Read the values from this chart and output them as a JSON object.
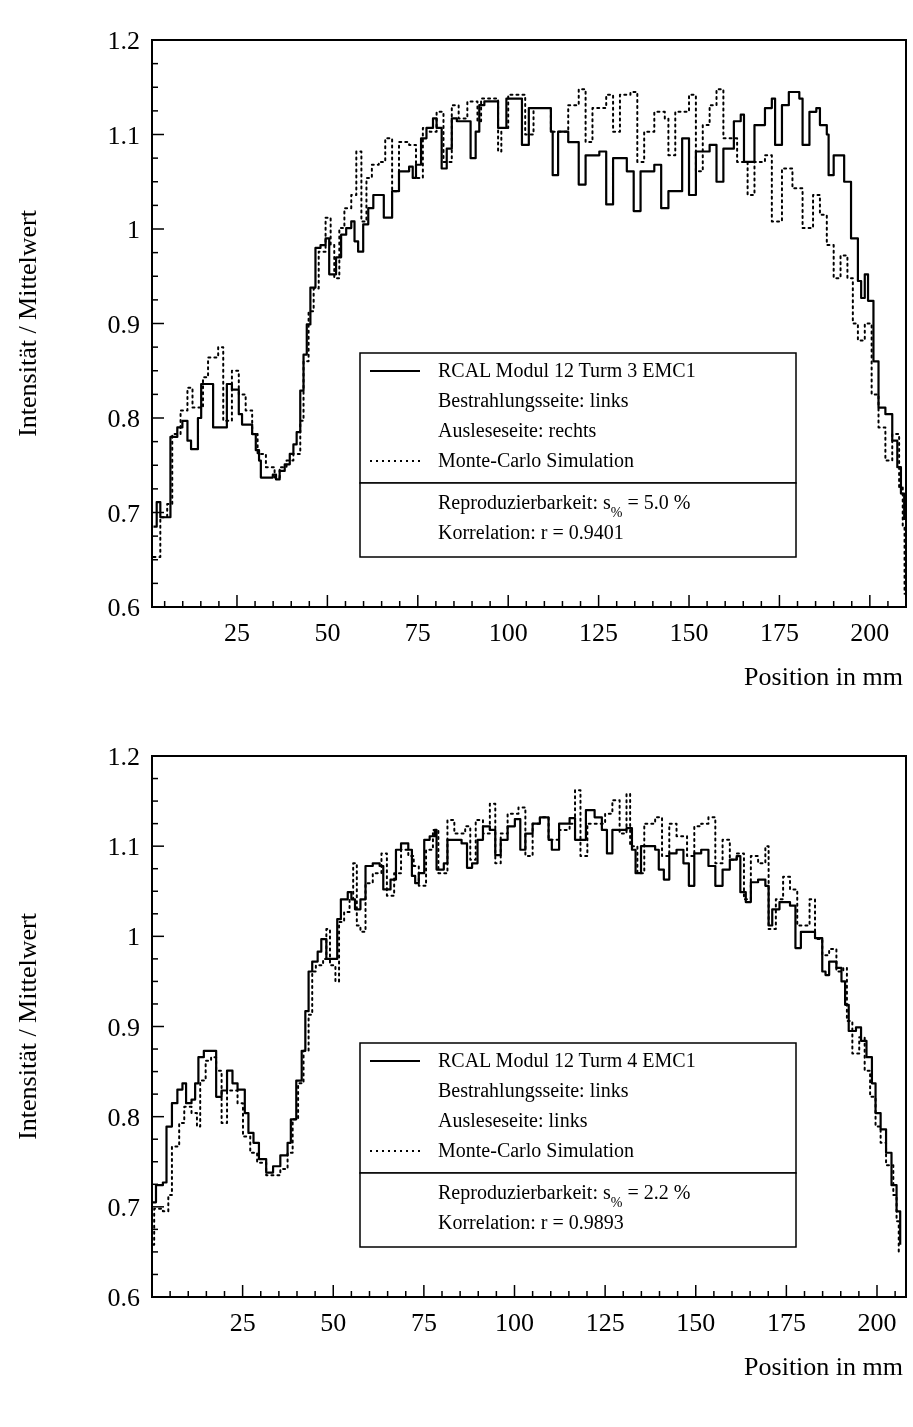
{
  "chart_data": [
    {
      "type": "step",
      "ylabel": "Intensität / Mittelwert",
      "xlabel": "Position in mm",
      "xlim": [
        1.5,
        210
      ],
      "ylim": [
        0.6,
        1.2
      ],
      "xticks": [
        {
          "value": 5,
          "label": null
        },
        {
          "value": 10,
          "label": null
        },
        {
          "value": 15,
          "label": null
        },
        {
          "value": 20,
          "label": null
        },
        25,
        {
          "value": 30,
          "label": null
        },
        {
          "value": 35,
          "label": null
        },
        {
          "value": 40,
          "label": null
        },
        {
          "value": 45,
          "label": null
        },
        50,
        {
          "value": 55,
          "label": null
        },
        {
          "value": 60,
          "label": null
        },
        {
          "value": 65,
          "label": null
        },
        {
          "value": 70,
          "label": null
        },
        75,
        {
          "value": 80,
          "label": null
        },
        {
          "value": 85,
          "label": null
        },
        {
          "value": 90,
          "label": null
        },
        {
          "value": 95,
          "label": null
        },
        100,
        {
          "value": 105,
          "label": null
        },
        {
          "value": 110,
          "label": null
        },
        {
          "value": 115,
          "label": null
        },
        {
          "value": 120,
          "label": null
        },
        125,
        {
          "value": 130,
          "label": null
        },
        {
          "value": 135,
          "label": null
        },
        {
          "value": 140,
          "label": null
        },
        {
          "value": 145,
          "label": null
        },
        150,
        {
          "value": 155,
          "label": null
        },
        {
          "value": 160,
          "label": null
        },
        {
          "value": 165,
          "label": null
        },
        {
          "value": 170,
          "label": null
        },
        175,
        {
          "value": 180,
          "label": null
        },
        {
          "value": 185,
          "label": null
        },
        {
          "value": 190,
          "label": null
        },
        {
          "value": 195,
          "label": null
        },
        200,
        {
          "value": 205,
          "label": null
        }
      ],
      "yticks": [
        0.6,
        {
          "value": 0.625,
          "label": null
        },
        {
          "value": 0.65,
          "label": null
        },
        {
          "value": 0.675,
          "label": null
        },
        0.7,
        {
          "value": 0.725,
          "label": null
        },
        {
          "value": 0.75,
          "label": null
        },
        {
          "value": 0.775,
          "label": null
        },
        0.8,
        {
          "value": 0.825,
          "label": null
        },
        {
          "value": 0.85,
          "label": null
        },
        {
          "value": 0.875,
          "label": null
        },
        0.9,
        {
          "value": 0.925,
          "label": null
        },
        {
          "value": 0.95,
          "label": null
        },
        {
          "value": 0.975,
          "label": null
        },
        1,
        {
          "value": 1.025,
          "label": null
        },
        {
          "value": 1.05,
          "label": null
        },
        {
          "value": 1.075,
          "label": null
        },
        1.1,
        {
          "value": 1.125,
          "label": null
        },
        {
          "value": 1.15,
          "label": null
        },
        {
          "value": 1.175,
          "label": null
        },
        1.2
      ],
      "legend": "bottom right",
      "annotations": [
        "Bestrahlungsseite: links",
        "Ausleseseite: rechts",
        "Reproduzierbarkeit: s$_{%}$ = 5.0 %",
        "Korrelation: r = 0.9401"
      ],
      "series": [
        {
          "name": "RCAL Modul 12 Turm 3 EMC1",
          "color": "#000000",
          "line_style": "solid",
          "x": [
            1.9,
            2.8,
            3.8,
            6.1,
            6.6,
            8.5,
            9.9,
            11.3,
            12.3,
            13.7,
            14.2,
            15.1,
            17.5,
            18.4,
            20.8,
            22.2,
            23.6,
            25.5,
            26.4,
            28.3,
            29.2,
            30.2,
            31.1,
            31.6,
            34.4,
            34.9,
            35.8,
            36.8,
            38.2,
            39.6,
            40.6,
            41.5,
            42.5,
            43.4,
            44.3,
            45.3,
            46.7,
            48.1,
            49.5,
            50.5,
            51.9,
            52.4,
            53.8,
            55.2,
            56.6,
            57.5,
            58.5,
            59.9,
            61.3,
            62.7,
            64.2,
            65.6,
            67.0,
            67.9,
            69.8,
            72.6,
            73.6,
            74.5,
            75.9,
            77.4,
            79.2,
            80.2,
            81.6,
            83.0,
            84.4,
            85.8,
            88.7,
            89.6,
            91.0,
            92.0,
            93.4,
            96.2,
            97.2,
            98.1,
            99.5,
            102.8,
            103.8,
            105.7,
            110.0,
            111.8,
            112.3,
            113.8,
            116.6,
            119.5,
            121.4,
            125.2,
            127.1,
            129.0,
            132.8,
            134.7,
            136.6,
            140.4,
            142.3,
            144.3,
            148.1,
            150.0,
            151.9,
            155.7,
            157.6,
            159.5,
            162.4,
            164.3,
            165.2,
            168.1,
            171.0,
            172.9,
            173.8,
            175.7,
            177.6,
            180.5,
            181.4,
            183.3,
            185.2,
            186.2,
            188.1,
            188.6,
            190.0,
            192.9,
            194.8,
            196.7,
            197.6,
            198.6,
            199.5,
            201.0,
            202.4,
            204.3,
            206.2,
            207.6,
            208.6,
            209.5
          ],
          "values": [
            0.685,
            0.711,
            0.695,
            0.695,
            0.78,
            0.79,
            0.797,
            0.776,
            0.767,
            0.767,
            0.8,
            0.836,
            0.836,
            0.79,
            0.79,
            0.836,
            0.83,
            0.804,
            0.793,
            0.793,
            0.783,
            0.766,
            0.755,
            0.737,
            0.737,
            0.74,
            0.735,
            0.744,
            0.751,
            0.762,
            0.772,
            0.785,
            0.829,
            0.867,
            0.899,
            0.938,
            0.98,
            0.983,
            0.99,
            0.952,
            0.952,
            0.97,
            0.994,
            1.001,
            1.008,
            0.987,
            0.976,
            1.005,
            1.022,
            1.036,
            1.036,
            1.012,
            1.012,
            1.04,
            1.061,
            1.066,
            1.054,
            1.068,
            1.096,
            1.107,
            1.117,
            1.107,
            1.064,
            1.085,
            1.117,
            1.114,
            1.114,
            1.075,
            1.103,
            1.131,
            1.135,
            1.135,
            1.107,
            1.107,
            1.138,
            1.138,
            1.089,
            1.128,
            1.128,
            1.103,
            1.057,
            1.103,
            1.092,
            1.047,
            1.078,
            1.082,
            1.026,
            1.075,
            1.061,
            1.019,
            1.061,
            1.068,
            1.022,
            1.04,
            1.096,
            1.036,
            1.082,
            1.089,
            1.05,
            1.085,
            1.114,
            1.121,
            1.071,
            1.11,
            1.128,
            1.138,
            1.089,
            1.131,
            1.145,
            1.138,
            1.089,
            1.124,
            1.128,
            1.11,
            1.1,
            1.057,
            1.078,
            1.05,
            0.99,
            0.945,
            0.927,
            0.952,
            0.924,
            0.86,
            0.811,
            0.804,
            0.776,
            0.748,
            0.72,
            0.692
          ]
        },
        {
          "name": "Monte-Carlo Simulation",
          "color": "#000000",
          "line_style": "dotted",
          "x": [
            1.9,
            3.8,
            5.7,
            7.1,
            9.4,
            11.3,
            12.7,
            15.6,
            17.0,
            19.8,
            21.2,
            23.6,
            25.5,
            27.4,
            29.2,
            30.7,
            33.0,
            35.4,
            36.8,
            38.7,
            40.6,
            42.5,
            43.4,
            44.8,
            46.2,
            47.6,
            49.5,
            50.9,
            51.9,
            53.3,
            54.7,
            56.6,
            58.0,
            59.4,
            60.8,
            62.3,
            64.2,
            66.0,
            67.9,
            69.8,
            72.6,
            74.5,
            76.4,
            78.3,
            80.2,
            82.1,
            84.4,
            86.3,
            88.7,
            91.5,
            92.5,
            95.3,
            97.2,
            98.1,
            100.0,
            102.8,
            104.7,
            107.0,
            111.8,
            116.6,
            119.5,
            121.4,
            123.3,
            127.1,
            129.0,
            130.9,
            133.8,
            135.7,
            137.6,
            140.4,
            143.3,
            144.3,
            146.2,
            150.0,
            151.9,
            153.8,
            155.7,
            157.6,
            159.5,
            163.3,
            166.2,
            168.1,
            171.0,
            172.9,
            175.7,
            178.6,
            181.4,
            184.3,
            186.2,
            188.1,
            190.0,
            191.9,
            193.8,
            195.3,
            196.7,
            198.6,
            200.5,
            202.4,
            204.3,
            206.2,
            208.1,
            209.1,
            209.6
          ],
          "values": [
            0.653,
            0.695,
            0.709,
            0.783,
            0.808,
            0.832,
            0.811,
            0.843,
            0.864,
            0.875,
            0.797,
            0.85,
            0.825,
            0.808,
            0.783,
            0.762,
            0.748,
            0.737,
            0.748,
            0.755,
            0.762,
            0.797,
            0.86,
            0.913,
            0.937,
            0.976,
            1.012,
            0.983,
            0.948,
            1.001,
            1.022,
            1.036,
            1.082,
            1.008,
            1.054,
            1.068,
            1.071,
            1.096,
            1.04,
            1.092,
            1.089,
            1.054,
            1.107,
            1.103,
            1.124,
            1.071,
            1.131,
            1.117,
            1.135,
            1.114,
            1.138,
            1.138,
            1.082,
            1.107,
            1.142,
            1.142,
            1.1,
            1.128,
            1.103,
            1.131,
            1.148,
            1.092,
            1.128,
            1.142,
            1.103,
            1.142,
            1.145,
            1.071,
            1.103,
            1.124,
            1.117,
            1.078,
            1.124,
            1.142,
            1.061,
            1.11,
            1.131,
            1.148,
            1.096,
            1.071,
            1.036,
            1.071,
            1.078,
            1.008,
            1.064,
            1.043,
            1.001,
            1.036,
            1.015,
            0.983,
            0.948,
            0.972,
            0.948,
            0.9,
            0.882,
            0.9,
            0.825,
            0.79,
            0.755,
            0.783,
            0.727,
            0.685,
            0.614
          ]
        }
      ]
    },
    {
      "type": "step",
      "ylabel": "Intensität / Mittelwert",
      "xlabel": "Position in mm",
      "xlim": [
        0,
        208
      ],
      "ylim": [
        0.6,
        1.2
      ],
      "xticks": [
        {
          "value": 5,
          "label": null
        },
        {
          "value": 10,
          "label": null
        },
        {
          "value": 15,
          "label": null
        },
        {
          "value": 20,
          "label": null
        },
        25,
        {
          "value": 30,
          "label": null
        },
        {
          "value": 35,
          "label": null
        },
        {
          "value": 40,
          "label": null
        },
        {
          "value": 45,
          "label": null
        },
        50,
        {
          "value": 55,
          "label": null
        },
        {
          "value": 60,
          "label": null
        },
        {
          "value": 65,
          "label": null
        },
        {
          "value": 70,
          "label": null
        },
        75,
        {
          "value": 80,
          "label": null
        },
        {
          "value": 85,
          "label": null
        },
        {
          "value": 90,
          "label": null
        },
        {
          "value": 95,
          "label": null
        },
        100,
        {
          "value": 105,
          "label": null
        },
        {
          "value": 110,
          "label": null
        },
        {
          "value": 115,
          "label": null
        },
        {
          "value": 120,
          "label": null
        },
        125,
        {
          "value": 130,
          "label": null
        },
        {
          "value": 135,
          "label": null
        },
        {
          "value": 140,
          "label": null
        },
        {
          "value": 145,
          "label": null
        },
        150,
        {
          "value": 155,
          "label": null
        },
        {
          "value": 160,
          "label": null
        },
        {
          "value": 165,
          "label": null
        },
        {
          "value": 170,
          "label": null
        },
        175,
        {
          "value": 180,
          "label": null
        },
        {
          "value": 185,
          "label": null
        },
        {
          "value": 190,
          "label": null
        },
        {
          "value": 195,
          "label": null
        },
        200,
        {
          "value": 205,
          "label": null
        }
      ],
      "yticks": [
        0.6,
        {
          "value": 0.625,
          "label": null
        },
        {
          "value": 0.65,
          "label": null
        },
        {
          "value": 0.675,
          "label": null
        },
        0.7,
        {
          "value": 0.725,
          "label": null
        },
        {
          "value": 0.75,
          "label": null
        },
        {
          "value": 0.775,
          "label": null
        },
        0.8,
        {
          "value": 0.825,
          "label": null
        },
        {
          "value": 0.85,
          "label": null
        },
        {
          "value": 0.875,
          "label": null
        },
        0.9,
        {
          "value": 0.925,
          "label": null
        },
        {
          "value": 0.95,
          "label": null
        },
        {
          "value": 0.975,
          "label": null
        },
        1,
        {
          "value": 1.025,
          "label": null
        },
        {
          "value": 1.05,
          "label": null
        },
        {
          "value": 1.075,
          "label": null
        },
        1.1,
        {
          "value": 1.125,
          "label": null
        },
        {
          "value": 1.15,
          "label": null
        },
        {
          "value": 1.175,
          "label": null
        },
        1.2
      ],
      "legend": "bottom right",
      "annotations": [
        "Bestrahlungsseite: links",
        "Ausleseseite: links",
        "Reproduzierbarkeit: s$_{%}$ = 2.2 %",
        "Korrelation: r = 0.9893"
      ],
      "series": [
        {
          "name": "RCAL Modul 12 Turm 4 EMC1",
          "color": "#000000",
          "line_style": "solid",
          "x": [
            0.2,
            1.1,
            3.0,
            4.0,
            5.5,
            7.0,
            8.4,
            9.4,
            10.9,
            11.9,
            12.8,
            14.3,
            16.3,
            17.7,
            19.2,
            20.7,
            22.2,
            23.6,
            25.6,
            26.6,
            28.0,
            29.5,
            31.5,
            33.4,
            35.4,
            37.4,
            38.3,
            39.8,
            41.3,
            42.3,
            43.2,
            44.2,
            45.7,
            46.7,
            48.1,
            50.1,
            51.1,
            52.1,
            54.0,
            55.0,
            56.0,
            57.5,
            58.9,
            60.9,
            62.8,
            63.8,
            65.8,
            67.3,
            68.7,
            70.7,
            71.7,
            72.6,
            73.6,
            75.1,
            76.6,
            78.0,
            78.5,
            80.5,
            81.5,
            83.4,
            85.4,
            86.9,
            88.3,
            89.8,
            91.3,
            93.2,
            94.7,
            96.2,
            98.1,
            100.1,
            101.6,
            103.0,
            105.0,
            107.0,
            109.4,
            110.3,
            112.3,
            115.2,
            116.7,
            118.2,
            119.7,
            122.1,
            124.1,
            125.5,
            127.0,
            130.9,
            132.4,
            133.4,
            134.9,
            138.8,
            139.8,
            141.2,
            142.7,
            144.7,
            146.6,
            148.1,
            149.6,
            151.5,
            153.5,
            155.4,
            157.4,
            159.4,
            161.3,
            162.3,
            163.8,
            165.2,
            167.2,
            169.2,
            170.1,
            171.1,
            173.1,
            176.0,
            177.5,
            179.0,
            182.9,
            184.9,
            185.8,
            186.8,
            188.8,
            190.2,
            191.2,
            192.2,
            194.2,
            195.6,
            197.1,
            198.6,
            199.6,
            201.0,
            202.5,
            204.0,
            205.4,
            206.4
          ],
          "values": [
            0.705,
            0.724,
            0.727,
            0.789,
            0.815,
            0.83,
            0.837,
            0.815,
            0.819,
            0.837,
            0.866,
            0.873,
            0.873,
            0.822,
            0.829,
            0.851,
            0.837,
            0.83,
            0.804,
            0.782,
            0.771,
            0.753,
            0.738,
            0.745,
            0.757,
            0.771,
            0.797,
            0.84,
            0.873,
            0.917,
            0.961,
            0.972,
            0.983,
            0.997,
            0.975,
            0.975,
            1.019,
            1.041,
            1.049,
            1.041,
            1.03,
            1.041,
            1.078,
            1.081,
            1.078,
            1.052,
            1.063,
            1.096,
            1.103,
            1.096,
            1.067,
            1.059,
            1.07,
            1.107,
            1.111,
            1.118,
            1.074,
            1.081,
            1.107,
            1.107,
            1.103,
            1.076,
            1.081,
            1.107,
            1.122,
            1.118,
            1.09,
            1.107,
            1.122,
            1.13,
            1.096,
            1.114,
            1.125,
            1.132,
            1.107,
            1.096,
            1.125,
            1.131,
            1.107,
            1.107,
            1.14,
            1.132,
            1.118,
            1.092,
            1.118,
            1.12,
            1.096,
            1.07,
            1.1,
            1.096,
            1.074,
            1.063,
            1.092,
            1.096,
            1.081,
            1.056,
            1.092,
            1.096,
            1.078,
            1.056,
            1.074,
            1.085,
            1.089,
            1.049,
            1.038,
            1.06,
            1.063,
            1.056,
            1.012,
            1.03,
            1.038,
            1.034,
            0.987,
            1.005,
            0.998,
            0.961,
            0.957,
            0.972,
            0.965,
            0.95,
            0.924,
            0.895,
            0.899,
            0.884,
            0.866,
            0.837,
            0.804,
            0.786,
            0.76,
            0.724,
            0.695,
            0.658
          ]
        },
        {
          "name": "Monte-Carlo Simulation",
          "color": "#000000",
          "line_style": "dotted",
          "x": [
            0.3,
            0.6,
            3.0,
            4.5,
            5.5,
            7.5,
            8.9,
            10.9,
            12.4,
            13.3,
            14.8,
            16.3,
            17.7,
            19.2,
            20.7,
            22.2,
            23.6,
            25.1,
            27.1,
            29.0,
            31.5,
            33.4,
            35.4,
            37.4,
            38.8,
            40.3,
            41.8,
            43.2,
            44.2,
            45.2,
            47.2,
            48.1,
            49.1,
            50.6,
            51.6,
            53.0,
            54.5,
            55.5,
            56.5,
            57.5,
            58.9,
            60.9,
            63.3,
            64.8,
            66.8,
            68.7,
            70.7,
            72.2,
            73.6,
            75.6,
            77.5,
            79.0,
            81.5,
            83.4,
            86.4,
            87.8,
            89.3,
            91.3,
            93.2,
            94.7,
            96.2,
            98.1,
            101.1,
            103.0,
            105.0,
            107.0,
            109.4,
            112.3,
            115.2,
            116.7,
            118.2,
            120.1,
            123.1,
            125.0,
            127.0,
            129.0,
            130.9,
            131.9,
            133.9,
            135.8,
            138.8,
            140.7,
            142.7,
            144.7,
            147.6,
            149.6,
            151.5,
            153.5,
            155.4,
            157.4,
            159.4,
            161.3,
            163.3,
            165.2,
            167.2,
            169.2,
            170.1,
            172.1,
            174.1,
            176.0,
            178.0,
            180.0,
            181.4,
            182.9,
            184.9,
            186.8,
            188.8,
            190.7,
            191.7,
            193.2,
            195.1,
            196.6,
            198.1,
            199.6,
            201.0,
            202.5,
            204.5,
            205.4,
            206.0
          ],
          "values": [
            0.658,
            0.698,
            0.695,
            0.713,
            0.767,
            0.793,
            0.811,
            0.804,
            0.789,
            0.84,
            0.862,
            0.866,
            0.851,
            0.793,
            0.829,
            0.829,
            0.815,
            0.778,
            0.76,
            0.749,
            0.735,
            0.735,
            0.742,
            0.76,
            0.797,
            0.837,
            0.873,
            0.913,
            0.961,
            0.968,
            0.975,
            1.008,
            0.968,
            0.95,
            1.016,
            1.027,
            1.041,
            1.081,
            1.012,
            1.005,
            1.059,
            1.07,
            1.092,
            1.045,
            1.07,
            1.096,
            1.089,
            1.078,
            1.056,
            1.096,
            1.118,
            1.07,
            1.129,
            1.114,
            1.122,
            1.085,
            1.129,
            1.114,
            1.147,
            1.081,
            1.114,
            1.136,
            1.143,
            1.089,
            1.125,
            1.132,
            1.107,
            1.118,
            1.125,
            1.162,
            1.089,
            1.125,
            1.125,
            1.136,
            1.151,
            1.114,
            1.158,
            1.1,
            1.07,
            1.125,
            1.132,
            1.089,
            1.125,
            1.111,
            1.089,
            1.122,
            1.125,
            1.132,
            1.081,
            1.107,
            1.085,
            1.092,
            1.041,
            1.089,
            1.081,
            1.1,
            1.008,
            1.041,
            1.066,
            1.052,
            1.012,
            1.012,
            1.041,
            0.997,
            0.979,
            0.986,
            0.961,
            0.965,
            0.906,
            0.87,
            0.888,
            0.851,
            0.822,
            0.789,
            0.771,
            0.746,
            0.713,
            0.684,
            0.647
          ]
        }
      ]
    }
  ]
}
